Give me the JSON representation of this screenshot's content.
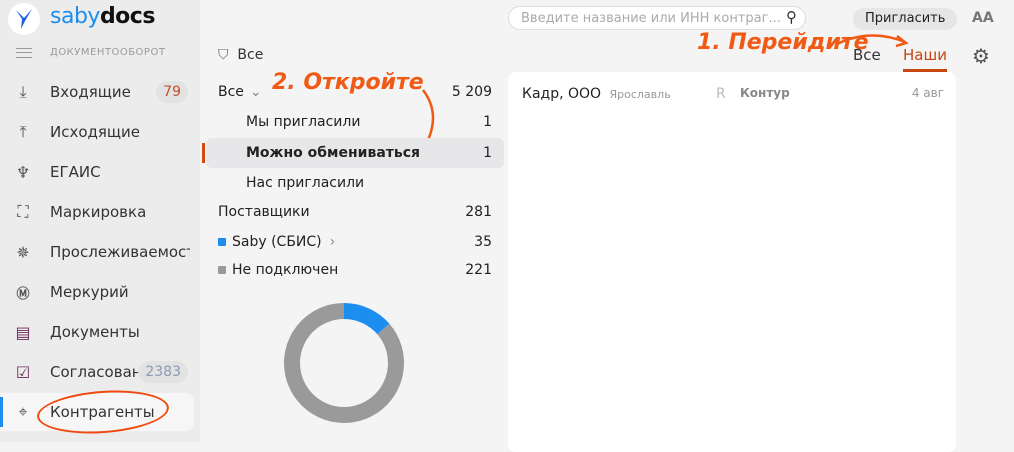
{
  "brand": {
    "part1": "saby",
    "part2": "docs"
  },
  "sidebar": {
    "section": "ДОКУМЕНТООБОРОТ",
    "items": [
      {
        "label": "Входящие",
        "icon": "inbox-download-icon",
        "badge": "79",
        "badge_color": "#c0502a"
      },
      {
        "label": "Исходящие",
        "icon": "outbox-upload-icon"
      },
      {
        "label": "ЕГАИС",
        "icon": "wine-glass-icon"
      },
      {
        "label": "Маркировка",
        "icon": "scan-check-icon"
      },
      {
        "label": "Прослеживаемость",
        "icon": "eagle-emblem-icon"
      },
      {
        "label": "Меркурий",
        "icon": "mercury-m-icon"
      },
      {
        "label": "Документы",
        "icon": "documents-icon"
      },
      {
        "label": "Согласования",
        "icon": "approval-clipboard-icon",
        "badge": "2383",
        "badge_color": "#8a9ab8"
      },
      {
        "label": "Контрагенты",
        "icon": "contractors-location-icon",
        "active": true
      }
    ]
  },
  "header": {
    "search_placeholder": "Введите название или ИНН контраг...",
    "invite": "Пригласить",
    "font_toggle": "AA"
  },
  "tabs": [
    {
      "label": "Все"
    },
    {
      "label": "Наши",
      "active": true
    }
  ],
  "annotations": {
    "step1": "1. Перейдите",
    "step2": "2. Откройте"
  },
  "filter": {
    "label": "Все"
  },
  "tree": [
    {
      "label": "Все",
      "count": "5 209"
    },
    {
      "label": "Мы пригласили",
      "count": "1"
    },
    {
      "label": "Можно обмениваться",
      "count": "1",
      "selected": true
    },
    {
      "label": "Нас пригласили",
      "count": ""
    },
    {
      "label": "Поставщики",
      "count": "281"
    },
    {
      "label": "Saby (СБИС)",
      "count": "35",
      "color": "#1c8ef0"
    },
    {
      "label": "Не подключен",
      "count": "221",
      "color": "#9a9a9a"
    }
  ],
  "list": [
    {
      "name": "Кадр, ООО",
      "city": "Ярославль",
      "operator_mark": "R",
      "operator": "Контур",
      "date": "4 авг"
    }
  ],
  "colors": {
    "accent": "#1c8ef0",
    "annotation": "#f05a14",
    "tab_active": "#d24a10"
  }
}
